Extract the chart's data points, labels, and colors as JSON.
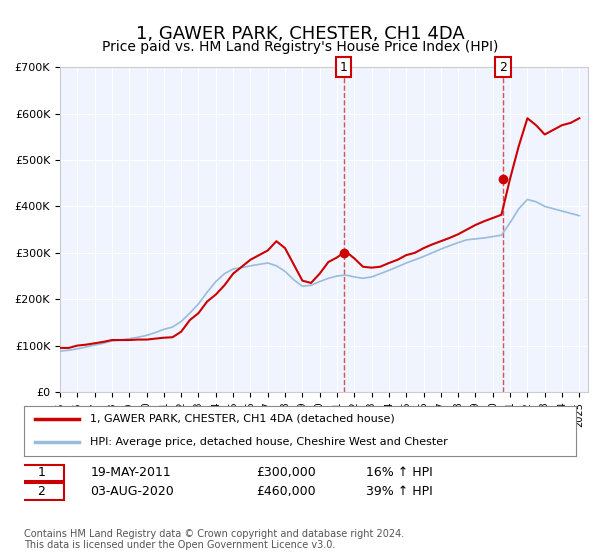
{
  "title": "1, GAWER PARK, CHESTER, CH1 4DA",
  "subtitle": "Price paid vs. HM Land Registry's House Price Index (HPI)",
  "title_fontsize": 13,
  "subtitle_fontsize": 10,
  "background_color": "#ffffff",
  "plot_bg_color": "#f0f4ff",
  "grid_color": "#ffffff",
  "red_line_color": "#cc0000",
  "blue_line_color": "#99bbdd",
  "marker_color": "#cc0000",
  "dashed_color": "#cc4444",
  "xlabel": "",
  "ylabel": "",
  "ylim": [
    0,
    700000
  ],
  "xlim_start": 1995,
  "xlim_end": 2025.5,
  "yticks": [
    0,
    100000,
    200000,
    300000,
    400000,
    500000,
    600000,
    700000
  ],
  "ytick_labels": [
    "£0",
    "£100K",
    "£200K",
    "£300K",
    "£400K",
    "£500K",
    "£600K",
    "£700K"
  ],
  "xticks": [
    1995,
    1996,
    1997,
    1998,
    1999,
    2000,
    2001,
    2002,
    2003,
    2004,
    2005,
    2006,
    2007,
    2008,
    2009,
    2010,
    2011,
    2012,
    2013,
    2014,
    2015,
    2016,
    2017,
    2018,
    2019,
    2020,
    2021,
    2022,
    2023,
    2024,
    2025
  ],
  "annotation1": {
    "x": 2011.38,
    "label": "1",
    "vline_x": 2011.38,
    "date": "19-MAY-2011",
    "price": "£300,000",
    "hpi": "16% ↑ HPI"
  },
  "annotation2": {
    "x": 2020.58,
    "label": "2",
    "vline_x": 2020.58,
    "date": "03-AUG-2020",
    "price": "£460,000",
    "hpi": "39% ↑ HPI"
  },
  "legend_label1": "1, GAWER PARK, CHESTER, CH1 4DA (detached house)",
  "legend_label2": "HPI: Average price, detached house, Cheshire West and Chester",
  "footer1": "Contains HM Land Registry data © Crown copyright and database right 2024.",
  "footer2": "This data is licensed under the Open Government Licence v3.0.",
  "red_line_data": {
    "x": [
      1995.0,
      1995.5,
      1996.0,
      1996.5,
      1997.0,
      1997.5,
      1998.0,
      1998.5,
      1999.0,
      1999.5,
      2000.0,
      2000.5,
      2001.0,
      2001.5,
      2002.0,
      2002.5,
      2003.0,
      2003.5,
      2004.0,
      2004.5,
      2005.0,
      2005.5,
      2006.0,
      2006.5,
      2007.0,
      2007.5,
      2008.0,
      2008.5,
      2009.0,
      2009.5,
      2010.0,
      2010.5,
      2011.0,
      2011.5,
      2012.0,
      2012.5,
      2013.0,
      2013.5,
      2014.0,
      2014.5,
      2015.0,
      2015.5,
      2016.0,
      2016.5,
      2017.0,
      2017.5,
      2018.0,
      2018.5,
      2019.0,
      2019.5,
      2020.0,
      2020.5,
      2021.0,
      2021.5,
      2022.0,
      2022.5,
      2023.0,
      2023.5,
      2024.0,
      2024.5,
      2025.0
    ],
    "y": [
      95000,
      95000,
      100000,
      102000,
      105000,
      108000,
      112000,
      112000,
      112000,
      113000,
      113000,
      115000,
      117000,
      118000,
      130000,
      155000,
      170000,
      195000,
      210000,
      230000,
      255000,
      270000,
      285000,
      295000,
      305000,
      325000,
      310000,
      275000,
      240000,
      235000,
      255000,
      280000,
      290000,
      303000,
      288000,
      270000,
      268000,
      270000,
      278000,
      285000,
      295000,
      300000,
      310000,
      318000,
      325000,
      332000,
      340000,
      350000,
      360000,
      368000,
      375000,
      382000,
      460000,
      530000,
      590000,
      575000,
      555000,
      565000,
      575000,
      580000,
      590000
    ]
  },
  "blue_line_data": {
    "x": [
      1995.0,
      1995.5,
      1996.0,
      1996.5,
      1997.0,
      1997.5,
      1998.0,
      1998.5,
      1999.0,
      1999.5,
      2000.0,
      2000.5,
      2001.0,
      2001.5,
      2002.0,
      2002.5,
      2003.0,
      2003.5,
      2004.0,
      2004.5,
      2005.0,
      2005.5,
      2006.0,
      2006.5,
      2007.0,
      2007.5,
      2008.0,
      2008.5,
      2009.0,
      2009.5,
      2010.0,
      2010.5,
      2011.0,
      2011.5,
      2012.0,
      2012.5,
      2013.0,
      2013.5,
      2014.0,
      2014.5,
      2015.0,
      2015.5,
      2016.0,
      2016.5,
      2017.0,
      2017.5,
      2018.0,
      2018.5,
      2019.0,
      2019.5,
      2020.0,
      2020.5,
      2021.0,
      2021.5,
      2022.0,
      2022.5,
      2023.0,
      2023.5,
      2024.0,
      2024.5,
      2025.0
    ],
    "y": [
      88000,
      90000,
      93000,
      97000,
      101000,
      105000,
      110000,
      112000,
      115000,
      118000,
      122000,
      128000,
      135000,
      140000,
      152000,
      170000,
      190000,
      215000,
      238000,
      255000,
      265000,
      268000,
      272000,
      275000,
      278000,
      272000,
      260000,
      242000,
      228000,
      230000,
      238000,
      245000,
      250000,
      252000,
      248000,
      245000,
      248000,
      255000,
      262000,
      270000,
      278000,
      285000,
      292000,
      300000,
      308000,
      315000,
      322000,
      328000,
      330000,
      332000,
      335000,
      338000,
      365000,
      395000,
      415000,
      410000,
      400000,
      395000,
      390000,
      385000,
      380000
    ]
  }
}
